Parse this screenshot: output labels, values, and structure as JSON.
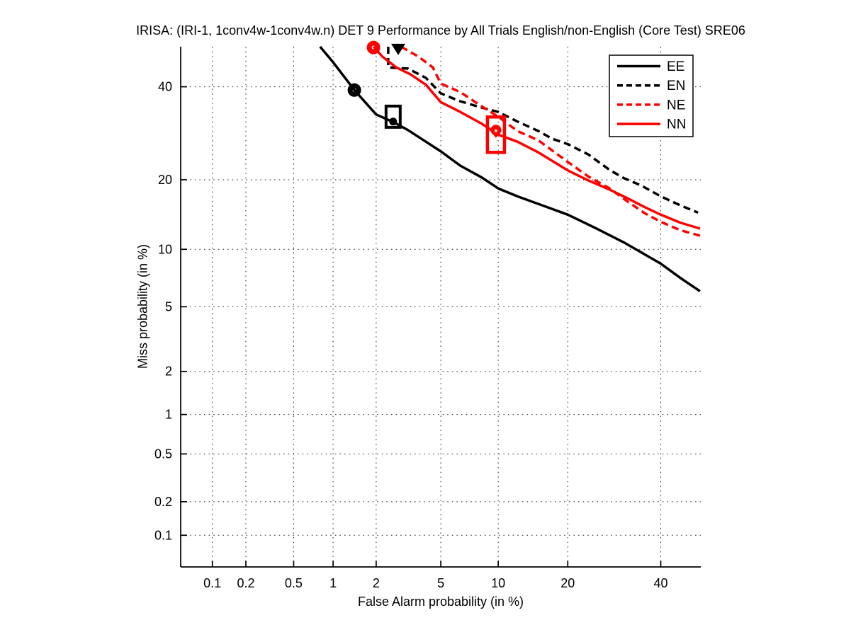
{
  "chart_data": {
    "type": "line",
    "chart_kind": "DET curve, normal-deviate (probit) scale on both axes",
    "title": "IRISA: (IRI-1, 1conv4w-1conv4w.n) DET 9 Performance by All Trials English/non-English (Core Test) SRE06",
    "xlabel": "False Alarm probability (in %)",
    "ylabel": "Miss probability (in %)",
    "xlim": [
      0.05,
      50
    ],
    "ylim": [
      0.05,
      50
    ],
    "grid": "dotted",
    "xticks": {
      "values": [
        0.1,
        0.2,
        0.5,
        1,
        2,
        5,
        10,
        20,
        40
      ],
      "labels": [
        "0.1",
        "0.2",
        "0.5",
        "1",
        "2",
        "5",
        "10",
        "20",
        "40"
      ]
    },
    "yticks": {
      "values": [
        0.1,
        0.2,
        0.5,
        1,
        2,
        5,
        10,
        20,
        40
      ],
      "labels": [
        "0.1",
        "0.2",
        "0.5",
        "1",
        "2",
        "5",
        "10",
        "20",
        "40"
      ]
    },
    "colors": {
      "black": "#000000",
      "red": "#ff0000"
    },
    "legend": {
      "position": "top-right",
      "labels": [
        "EE",
        "EN",
        "NE",
        "NN"
      ]
    },
    "series": [
      {
        "name": "EE",
        "color": "#000000",
        "style": "solid",
        "points": [
          [
            0.8,
            50
          ],
          [
            1.0,
            46.1
          ],
          [
            1.42,
            39.2
          ],
          [
            2.0,
            33.4
          ],
          [
            2.58,
            31.7
          ],
          [
            3.2,
            29.9
          ],
          [
            4.1,
            27.4
          ],
          [
            5.0,
            25.4
          ],
          [
            6.4,
            22.6
          ],
          [
            8.3,
            20.4
          ],
          [
            10,
            18.5
          ],
          [
            12.3,
            17.2
          ],
          [
            15.2,
            16.0
          ],
          [
            20,
            14.4
          ],
          [
            25.2,
            12.6
          ],
          [
            31.3,
            10.8
          ],
          [
            40,
            8.5
          ],
          [
            44.8,
            7.2
          ],
          [
            49.8,
            6.1
          ]
        ]
      },
      {
        "name": "EN",
        "color": "#000000",
        "style": "dashed",
        "points": [
          [
            2.4,
            50
          ],
          [
            2.4,
            44.8
          ],
          [
            3.2,
            44.5
          ],
          [
            4.1,
            42.2
          ],
          [
            5.0,
            38.4
          ],
          [
            6.4,
            36.5
          ],
          [
            8.3,
            35.0
          ],
          [
            10,
            34.0
          ],
          [
            12.3,
            31.8
          ],
          [
            15.2,
            29.7
          ],
          [
            17.4,
            28.0
          ],
          [
            20,
            26.9
          ],
          [
            23.8,
            24.8
          ],
          [
            28.2,
            21.8
          ],
          [
            31.3,
            20.3
          ],
          [
            35.3,
            19.0
          ],
          [
            40,
            17.2
          ],
          [
            44.8,
            15.8
          ],
          [
            49.3,
            14.7
          ]
        ]
      },
      {
        "name": "NE",
        "color": "#ff0000",
        "style": "dashed",
        "points": [
          [
            2.9,
            50
          ],
          [
            3.7,
            47.5
          ],
          [
            4.5,
            44.8
          ],
          [
            5.0,
            40.8
          ],
          [
            6.4,
            38.7
          ],
          [
            8.3,
            35.3
          ],
          [
            10,
            32.9
          ],
          [
            12.3,
            29.7
          ],
          [
            15.2,
            27.7
          ],
          [
            20,
            23.3
          ],
          [
            23.8,
            20.6
          ],
          [
            28.2,
            18.5
          ],
          [
            32.1,
            16.4
          ],
          [
            36.2,
            14.6
          ],
          [
            40,
            13.4
          ],
          [
            44.8,
            12.3
          ],
          [
            49.8,
            11.6
          ]
        ]
      },
      {
        "name": "NN",
        "color": "#ff0000",
        "style": "solid",
        "points": [
          [
            1.92,
            50
          ],
          [
            2.2,
            47.5
          ],
          [
            2.7,
            44.8
          ],
          [
            3.3,
            43.1
          ],
          [
            4.1,
            40.5
          ],
          [
            5.0,
            36.3
          ],
          [
            6.4,
            34.0
          ],
          [
            8.3,
            31.3
          ],
          [
            10,
            28.9
          ],
          [
            12.3,
            27.4
          ],
          [
            15.2,
            25.2
          ],
          [
            20,
            21.7
          ],
          [
            23.8,
            19.9
          ],
          [
            28.2,
            18.3
          ],
          [
            32.1,
            16.9
          ],
          [
            36.2,
            15.5
          ],
          [
            40,
            14.4
          ],
          [
            44.8,
            13.3
          ],
          [
            49.8,
            12.5
          ]
        ]
      }
    ],
    "markers": [
      {
        "series": "EE",
        "shape": "ring",
        "color": "#000000",
        "fa": 1.42,
        "miss": 39.2,
        "r": 6,
        "sw": 7
      },
      {
        "series": "EE",
        "shape": "rect-open",
        "color": "#000000",
        "fa": 2.58,
        "miss": 32.9,
        "w": 20,
        "h": 30,
        "sw": 4
      },
      {
        "series": "EE",
        "shape": "dot",
        "color": "#000000",
        "fa": 2.58,
        "miss": 31.8,
        "r": 5.5
      },
      {
        "series": "EN",
        "shape": "triangle-down",
        "color": "#000000",
        "fa": 2.78,
        "miss": 49.3,
        "w": 20,
        "h": 16
      },
      {
        "series": "NN",
        "shape": "ring",
        "color": "#ff0000",
        "fa": 1.92,
        "miss": 49.8,
        "r": 6,
        "sw": 7
      },
      {
        "series": "NN",
        "shape": "rect-open",
        "color": "#ff0000",
        "fa": 9.75,
        "miss": 28.9,
        "w": 24,
        "h": 50,
        "sw": 4.5
      },
      {
        "series": "NN",
        "shape": "heart",
        "color": "#ff0000",
        "fa": 9.75,
        "miss": 29.6,
        "r": 7.5
      }
    ]
  }
}
